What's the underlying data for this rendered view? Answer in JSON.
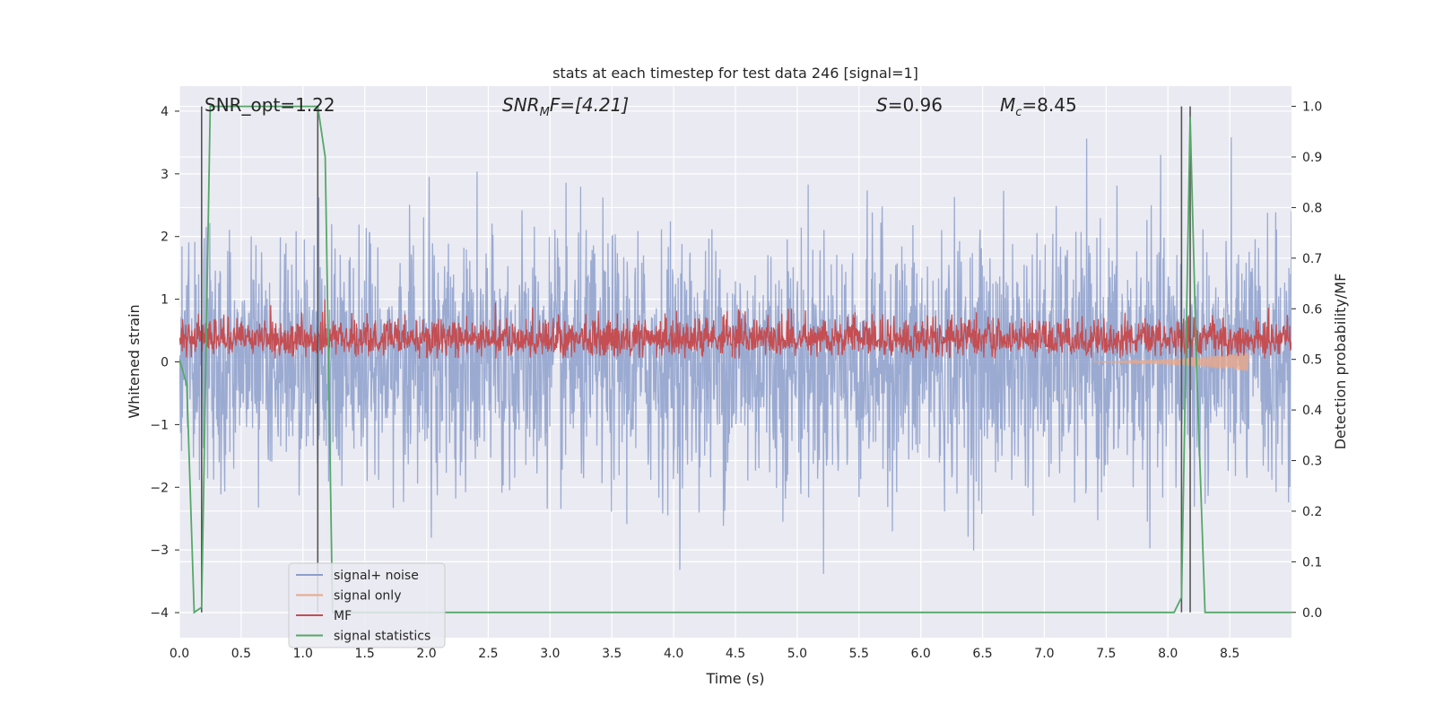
{
  "chart_data": {
    "type": "line",
    "title": "stats at each timestep for test data 246 [signal=1]",
    "xlabel": "Time (s)",
    "ylabel": "Whitened strain",
    "ylabel_right": "Detection probability/MF",
    "xlim": [
      0.0,
      9.0
    ],
    "ylim": [
      -4.4,
      4.4
    ],
    "ylim_right": [
      -0.05,
      1.04
    ],
    "xticks": [
      "0.0",
      "0.5",
      "1.0",
      "1.5",
      "2.0",
      "2.5",
      "3.0",
      "3.5",
      "4.0",
      "4.5",
      "5.0",
      "5.5",
      "6.0",
      "6.5",
      "7.0",
      "7.5",
      "8.0",
      "8.5"
    ],
    "yticks": [
      "−4",
      "−3",
      "−2",
      "−1",
      "0",
      "1",
      "2",
      "3",
      "4"
    ],
    "yticks_right": [
      "0.0",
      "0.1",
      "0.2",
      "0.3",
      "0.4",
      "0.5",
      "0.6",
      "0.7",
      "0.8",
      "0.9",
      "1.0"
    ],
    "grid": true,
    "legend_position": "lower-left",
    "annotations": {
      "snr_opt": "SNR_opt=1.22",
      "snr_mf": "SNRMF=[4.21]",
      "snr_mf_base": "SNR",
      "snr_mf_sub": "M",
      "snr_mf_rest": "F=[4.21]",
      "spin": "S=0.96",
      "spin_base": "S",
      "spin_rest": "=0.96",
      "chirp_mass": "Mc=8.45",
      "chirp_mass_base": "M",
      "chirp_mass_sub": "c",
      "chirp_mass_rest": "=8.45"
    },
    "vertical_lines_x": [
      0.18,
      1.12,
      8.11,
      8.18
    ],
    "series": [
      {
        "name": "signal+ noise",
        "color": "#8c9fcb",
        "axis": "left",
        "style": "noise",
        "envelope_typical": 1.6,
        "envelope_max": 4.0
      },
      {
        "name": "signal only",
        "color": "#e8a88a",
        "axis": "left",
        "style": "chirp",
        "x_range": [
          7.4,
          8.65
        ],
        "peak_amplitude": 0.15
      },
      {
        "name": "MF",
        "color": "#c44e52",
        "axis": "left",
        "style": "mf",
        "range": [
          0.05,
          1.0
        ]
      },
      {
        "name": "signal statistics",
        "color": "#55a868",
        "axis": "right",
        "style": "line",
        "x": [
          0.0,
          0.06,
          0.12,
          0.18,
          0.25,
          0.6,
          1.0,
          1.12,
          1.18,
          1.24,
          1.3,
          3.0,
          3.05,
          8.05,
          8.11,
          8.18,
          8.23,
          8.3,
          9.0
        ],
        "y": [
          0.5,
          0.45,
          0.0,
          0.01,
          1.0,
          1.0,
          1.0,
          1.0,
          0.9,
          0.0,
          0.0,
          0.0,
          0.0,
          0.0,
          0.03,
          0.98,
          0.5,
          0.0,
          0.0
        ]
      }
    ]
  }
}
